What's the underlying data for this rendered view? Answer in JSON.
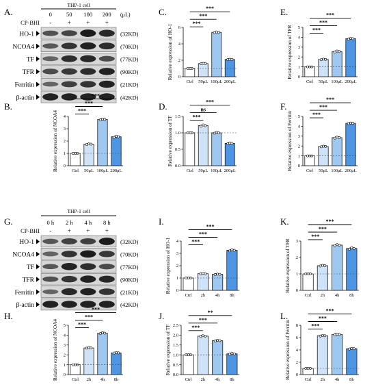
{
  "colors": {
    "ctrl": "#ffffff",
    "b1": "#cfe3f8",
    "b2": "#9ec8ef",
    "b3": "#4e95e3",
    "edge": "#1a1a1a",
    "blot_bg": "#d6d6d6",
    "blot_band": "#121212"
  },
  "blots": [
    {
      "letter": "A.",
      "header": "THP-1 cell",
      "dose_labels": [
        "0",
        "50",
        "100",
        "200"
      ],
      "unit": "(μL)",
      "treat_label": "CP-BHI",
      "treat_signs": [
        "-",
        "+",
        "+",
        "+"
      ],
      "rows": [
        {
          "name": "HO-1",
          "kd": "(32KD)",
          "intensity": [
            0.55,
            0.65,
            1.0,
            0.9
          ]
        },
        {
          "name": "NCOA4",
          "kd": "(70KD)",
          "intensity": [
            0.5,
            0.8,
            0.95,
            0.85
          ]
        },
        {
          "name": "TF",
          "kd": "(77KD)",
          "intensity": [
            0.4,
            0.85,
            0.9,
            0.6
          ]
        },
        {
          "name": "TFR",
          "kd": "(90KD)",
          "intensity": [
            0.6,
            0.75,
            0.85,
            0.95
          ]
        },
        {
          "name": "Ferritin",
          "kd": "(21KD)",
          "intensity": [
            0.4,
            0.7,
            0.8,
            0.95
          ]
        },
        {
          "name": "β-actin",
          "kd": "(42KD)",
          "intensity": [
            0.95,
            0.95,
            0.95,
            0.95
          ]
        }
      ]
    },
    {
      "letter": "G.",
      "header": "THP-1 cell",
      "dose_labels": [
        "0 h",
        "2 h",
        "4 h",
        "8 h"
      ],
      "unit": "",
      "treat_label": "CP-BHI",
      "treat_signs": [
        "-",
        "+",
        "+",
        "+"
      ],
      "rows": [
        {
          "name": "HO-1",
          "kd": "(32KD)",
          "intensity": [
            0.5,
            0.7,
            0.7,
            1.0
          ]
        },
        {
          "name": "NCOA4",
          "kd": "(70KD)",
          "intensity": [
            0.4,
            0.8,
            1.0,
            0.75
          ]
        },
        {
          "name": "TF",
          "kd": "(77KD)",
          "intensity": [
            0.5,
            0.95,
            0.85,
            0.6
          ]
        },
        {
          "name": "TFR",
          "kd": "(90KD)",
          "intensity": [
            0.55,
            0.8,
            0.95,
            0.9
          ]
        },
        {
          "name": "Ferritin",
          "kd": "(21KD)",
          "intensity": [
            0.4,
            0.9,
            0.95,
            0.8
          ]
        },
        {
          "name": "β-actin",
          "kd": "(42KD)",
          "intensity": [
            0.95,
            0.95,
            0.95,
            0.95
          ]
        }
      ]
    }
  ],
  "chart_data": [
    {
      "letter": "C.",
      "type": "bar",
      "ylabel": "Relative expression of HO-1",
      "categories": [
        "Ctrl",
        "50μL",
        "100μL",
        "200μL"
      ],
      "values": [
        1.0,
        1.6,
        5.4,
        2.1
      ],
      "points": [
        [
          1.0,
          1.0,
          1.0
        ],
        [
          1.58,
          1.62,
          1.6
        ],
        [
          5.35,
          5.45,
          5.4
        ],
        [
          2.08,
          2.12,
          2.1
        ]
      ],
      "ylim": [
        0,
        6
      ],
      "yticks": [
        0,
        2,
        4,
        6
      ],
      "dashed": 1,
      "sig": [
        {
          "to": 1,
          "label": "***"
        },
        {
          "to": 2,
          "label": "***"
        },
        {
          "to": 3,
          "label": "***"
        }
      ]
    },
    {
      "letter": "E.",
      "type": "bar",
      "ylabel": "Relative expression of TFR",
      "categories": [
        "Ctrl",
        "50μL",
        "100μL",
        "200μL"
      ],
      "values": [
        1.0,
        1.75,
        2.55,
        3.85
      ],
      "points": [
        [
          1.0,
          1.0,
          1.0
        ],
        [
          1.72,
          1.78,
          1.75
        ],
        [
          2.5,
          2.6,
          2.55
        ],
        [
          3.8,
          3.9,
          3.85
        ]
      ],
      "ylim": [
        0,
        5
      ],
      "yticks": [
        0,
        1,
        2,
        3,
        4,
        5
      ],
      "dashed": 1,
      "sig": [
        {
          "to": 1,
          "label": "***"
        },
        {
          "to": 2,
          "label": "***"
        },
        {
          "to": 3,
          "label": "***"
        }
      ]
    },
    {
      "letter": "B.",
      "type": "bar",
      "ylabel": "Relative expression of NCOA4",
      "categories": [
        "Ctrl",
        "50μL",
        "100μL",
        "200μL"
      ],
      "values": [
        1.0,
        1.75,
        3.75,
        2.35
      ],
      "points": [
        [
          1.0,
          1.0,
          1.0
        ],
        [
          1.73,
          1.77,
          1.75
        ],
        [
          3.72,
          3.78,
          3.75
        ],
        [
          2.3,
          2.4,
          2.35
        ]
      ],
      "ylim": [
        0,
        4
      ],
      "yticks": [
        0,
        1,
        2,
        3,
        4
      ],
      "dashed": 1,
      "sig": [
        {
          "to": 1,
          "label": "***"
        },
        {
          "to": 2,
          "label": "***"
        },
        {
          "to": 3,
          "label": "***"
        }
      ]
    },
    {
      "letter": "D.",
      "type": "bar",
      "ylabel": "Relative expression of TF",
      "categories": [
        "Ctrl",
        "50μL",
        "100μL",
        "200μL"
      ],
      "values": [
        1.0,
        1.22,
        1.0,
        0.68
      ],
      "points": [
        [
          1.0,
          1.0,
          1.0
        ],
        [
          1.2,
          1.24,
          1.22
        ],
        [
          0.99,
          1.01,
          1.0
        ],
        [
          0.67,
          0.69,
          0.68
        ]
      ],
      "ylim": [
        0,
        1.5
      ],
      "yticks": [
        0.0,
        0.5,
        1.0,
        1.5
      ],
      "dashed": 1,
      "sig": [
        {
          "to": 1,
          "label": "***"
        },
        {
          "to": 2,
          "label": "ns"
        },
        {
          "to": 3,
          "label": "***"
        }
      ]
    },
    {
      "letter": "F.",
      "type": "bar",
      "ylabel": "Relative expression of Ferritin",
      "categories": [
        "Ctrl",
        "50μL",
        "100μL",
        "200μL"
      ],
      "values": [
        1.0,
        1.95,
        2.85,
        4.3
      ],
      "points": [
        [
          1.0,
          1.0,
          1.0
        ],
        [
          1.92,
          1.98,
          1.95
        ],
        [
          2.8,
          2.9,
          2.85
        ],
        [
          4.27,
          4.33,
          4.3
        ]
      ],
      "ylim": [
        0,
        5
      ],
      "yticks": [
        0,
        1,
        2,
        3,
        4,
        5
      ],
      "dashed": 1,
      "sig": [
        {
          "to": 1,
          "label": "***"
        },
        {
          "to": 2,
          "label": "***"
        },
        {
          "to": 3,
          "label": "***"
        }
      ]
    },
    {
      "letter": "I.",
      "type": "bar",
      "ylabel": "Relative expression of HO-1",
      "categories": [
        "Ctrl",
        "2h",
        "4h",
        "8h"
      ],
      "values": [
        1.0,
        1.35,
        1.3,
        3.25
      ],
      "points": [
        [
          1.0,
          1.0,
          1.0
        ],
        [
          1.33,
          1.37,
          1.35
        ],
        [
          1.28,
          1.32,
          1.3
        ],
        [
          3.2,
          3.3,
          3.25
        ]
      ],
      "ylim": [
        0,
        4
      ],
      "yticks": [
        0,
        1,
        2,
        3,
        4
      ],
      "dashed": 1,
      "sig": [
        {
          "to": 1,
          "label": "***"
        },
        {
          "to": 2,
          "label": "***"
        },
        {
          "to": 3,
          "label": "***"
        }
      ]
    },
    {
      "letter": "K.",
      "type": "bar",
      "ylabel": "Relative expression of TFR",
      "categories": [
        "Ctrl",
        "2h",
        "4h",
        "8h"
      ],
      "values": [
        1.0,
        1.5,
        2.75,
        2.55
      ],
      "points": [
        [
          1.0,
          1.0,
          1.0
        ],
        [
          1.48,
          1.52,
          1.5
        ],
        [
          2.72,
          2.78,
          2.75
        ],
        [
          2.5,
          2.6,
          2.55
        ]
      ],
      "ylim": [
        0,
        3
      ],
      "yticks": [
        0,
        1,
        2,
        3
      ],
      "dashed": 1,
      "sig": [
        {
          "to": 1,
          "label": "***"
        },
        {
          "to": 2,
          "label": "***"
        },
        {
          "to": 3,
          "label": "***"
        }
      ]
    },
    {
      "letter": "H.",
      "type": "bar",
      "ylabel": "Relative expression of NCOA4",
      "categories": [
        "Ctrl",
        "2h",
        "4h",
        "8h"
      ],
      "values": [
        1.0,
        2.7,
        4.2,
        2.2
      ],
      "points": [
        [
          1.0,
          1.0,
          1.0
        ],
        [
          2.68,
          2.72,
          2.7
        ],
        [
          4.15,
          4.25,
          4.2
        ],
        [
          2.18,
          2.22,
          2.2
        ]
      ],
      "ylim": [
        0,
        5
      ],
      "yticks": [
        0,
        1,
        2,
        3,
        4,
        5
      ],
      "dashed": 1,
      "sig": [
        {
          "to": 1,
          "label": "***"
        },
        {
          "to": 2,
          "label": "***"
        },
        {
          "to": 3,
          "label": "***"
        }
      ]
    },
    {
      "letter": "J.",
      "type": "bar",
      "ylabel": "Relative expression of TF",
      "categories": [
        "Ctrl",
        "2h",
        "4h",
        "8h"
      ],
      "values": [
        1.0,
        1.95,
        1.72,
        1.05
      ],
      "points": [
        [
          1.0,
          1.0,
          1.0
        ],
        [
          1.93,
          1.97,
          1.95
        ],
        [
          1.7,
          1.74,
          1.72
        ],
        [
          1.03,
          1.07,
          1.05
        ]
      ],
      "ylim": [
        0,
        2.5
      ],
      "yticks": [
        0.0,
        0.5,
        1.0,
        1.5,
        2.0,
        2.5
      ],
      "dashed": 1,
      "sig": [
        {
          "to": 1,
          "label": "***"
        },
        {
          "to": 2,
          "label": "***"
        },
        {
          "to": 3,
          "label": "**"
        }
      ]
    },
    {
      "letter": "L.",
      "type": "bar",
      "ylabel": "Relative expression of Ferritin",
      "categories": [
        "Ctrl",
        "2h",
        "4h",
        "8h"
      ],
      "values": [
        1.0,
        6.3,
        6.5,
        4.2
      ],
      "points": [
        [
          1.0,
          1.0,
          1.0
        ],
        [
          6.25,
          6.35,
          6.3
        ],
        [
          6.45,
          6.55,
          6.5
        ],
        [
          4.15,
          4.25,
          4.2
        ]
      ],
      "ylim": [
        0,
        8
      ],
      "yticks": [
        0,
        2,
        4,
        6,
        8
      ],
      "dashed": 1,
      "sig": [
        {
          "to": 1,
          "label": "***"
        },
        {
          "to": 2,
          "label": "***"
        },
        {
          "to": 3,
          "label": "***"
        }
      ]
    }
  ]
}
